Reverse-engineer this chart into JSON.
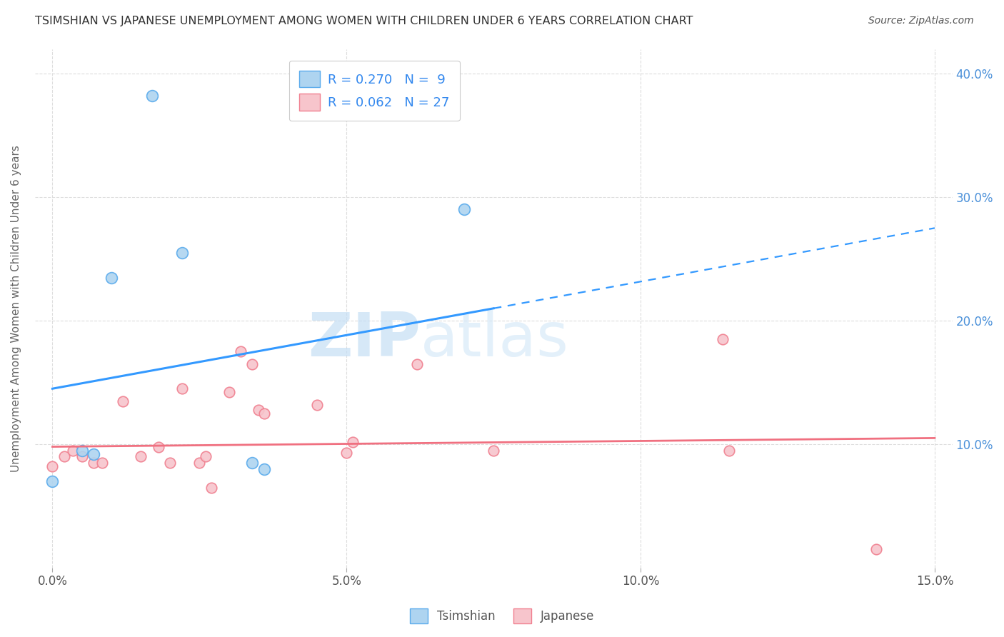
{
  "title": "TSIMSHIAN VS JAPANESE UNEMPLOYMENT AMONG WOMEN WITH CHILDREN UNDER 6 YEARS CORRELATION CHART",
  "source": "Source: ZipAtlas.com",
  "ylabel": "Unemployment Among Women with Children Under 6 years",
  "xlabel_ticks": [
    "0.0%",
    "5.0%",
    "10.0%",
    "15.0%"
  ],
  "xlabel_vals": [
    0.0,
    5.0,
    10.0,
    15.0
  ],
  "ylim": [
    0,
    42
  ],
  "xlim": [
    -0.3,
    15.3
  ],
  "yticks": [
    10,
    20,
    30,
    40
  ],
  "ytick_labels": [
    "10.0%",
    "20.0%",
    "30.0%",
    "40.0%"
  ],
  "watermark_part1": "ZIP",
  "watermark_part2": "atlas",
  "tsimshian_color": "#aed4f0",
  "japanese_color": "#f7c5cc",
  "tsimshian_edge_color": "#5aabec",
  "japanese_edge_color": "#f08090",
  "tsimshian_line_color": "#3399ff",
  "japanese_line_color": "#f07080",
  "tsimshian_scatter": [
    [
      0.0,
      7.0
    ],
    [
      0.5,
      9.5
    ],
    [
      0.7,
      9.2
    ],
    [
      1.0,
      23.5
    ],
    [
      1.7,
      38.2
    ],
    [
      2.2,
      25.5
    ],
    [
      3.4,
      8.5
    ],
    [
      3.6,
      8.0
    ],
    [
      7.0,
      29.0
    ]
  ],
  "japanese_scatter": [
    [
      0.0,
      8.2
    ],
    [
      0.2,
      9.0
    ],
    [
      0.35,
      9.5
    ],
    [
      0.5,
      9.0
    ],
    [
      0.7,
      8.5
    ],
    [
      0.85,
      8.5
    ],
    [
      1.2,
      13.5
    ],
    [
      1.5,
      9.0
    ],
    [
      1.8,
      9.8
    ],
    [
      2.0,
      8.5
    ],
    [
      2.2,
      14.5
    ],
    [
      2.5,
      8.5
    ],
    [
      2.6,
      9.0
    ],
    [
      2.7,
      6.5
    ],
    [
      3.0,
      14.2
    ],
    [
      3.2,
      17.5
    ],
    [
      3.4,
      16.5
    ],
    [
      3.5,
      12.8
    ],
    [
      3.6,
      12.5
    ],
    [
      4.5,
      13.2
    ],
    [
      5.0,
      9.3
    ],
    [
      5.1,
      10.2
    ],
    [
      6.2,
      16.5
    ],
    [
      7.5,
      9.5
    ],
    [
      11.4,
      18.5
    ],
    [
      11.5,
      9.5
    ],
    [
      14.0,
      1.5
    ]
  ],
  "ts_reg_x0": 0.0,
  "ts_reg_y0": 14.5,
  "ts_reg_x1": 15.0,
  "ts_reg_y1": 27.5,
  "ts_solid_x_end": 7.5,
  "jp_reg_x0": 0.0,
  "jp_reg_y0": 9.8,
  "jp_reg_x1": 15.0,
  "jp_reg_y1": 10.5,
  "tsimshian_marker_size": 130,
  "japanese_marker_size": 110,
  "background_color": "#ffffff",
  "grid_color": "#dddddd"
}
